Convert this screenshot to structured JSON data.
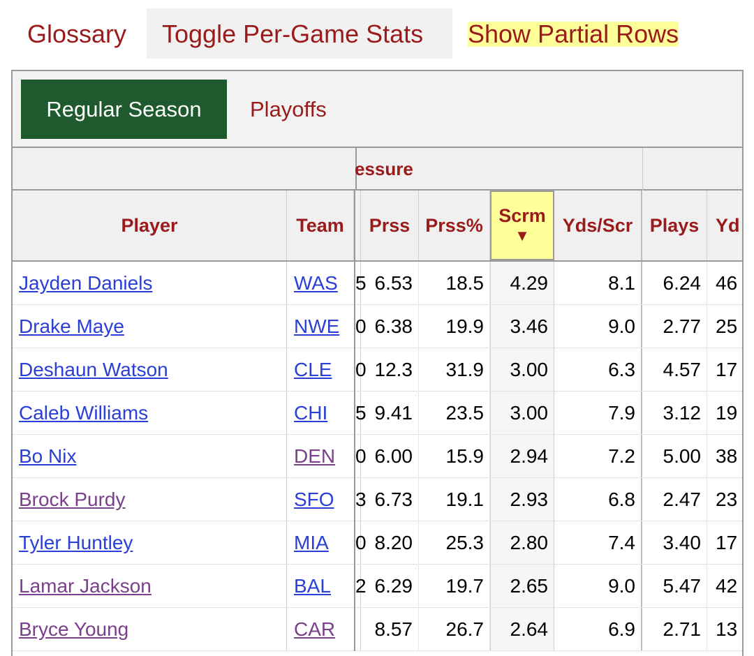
{
  "toolbar": {
    "glossary": "Glossary",
    "toggle_per_game": "Toggle Per-Game Stats",
    "show_partial_rows": "Show Partial Rows"
  },
  "tabs": {
    "regular_season": "Regular Season",
    "playoffs": "Playoffs"
  },
  "over_header": {
    "label": "essure"
  },
  "columns": {
    "player": "Player",
    "team": "Team",
    "prss": "Prss",
    "prss_pct": "Prss%",
    "scrm": "Scrm",
    "scrm_sort": "▼",
    "yds_scr": "Yds/Scr",
    "plays": "Plays",
    "yd": "Yd"
  },
  "rows": [
    {
      "player": "Jayden Daniels",
      "team": "WAS",
      "stub": "5",
      "prss": "6.53",
      "prss_pct": "18.5",
      "scrm": "4.29",
      "yds_scr": "8.1",
      "plays": "6.24",
      "yd": "46",
      "player_visited": false,
      "team_visited": false
    },
    {
      "player": "Drake Maye",
      "team": "NWE",
      "stub": "0",
      "prss": "6.38",
      "prss_pct": "19.9",
      "scrm": "3.46",
      "yds_scr": "9.0",
      "plays": "2.77",
      "yd": "25",
      "player_visited": false,
      "team_visited": false
    },
    {
      "player": "Deshaun Watson",
      "team": "CLE",
      "stub": "0",
      "prss": "12.3",
      "prss_pct": "31.9",
      "scrm": "3.00",
      "yds_scr": "6.3",
      "plays": "4.57",
      "yd": "17",
      "player_visited": false,
      "team_visited": false
    },
    {
      "player": "Caleb Williams",
      "team": "CHI",
      "stub": "5",
      "prss": "9.41",
      "prss_pct": "23.5",
      "scrm": "3.00",
      "yds_scr": "7.9",
      "plays": "3.12",
      "yd": "19",
      "player_visited": false,
      "team_visited": false
    },
    {
      "player": "Bo Nix",
      "team": "DEN",
      "stub": "0",
      "prss": "6.00",
      "prss_pct": "15.9",
      "scrm": "2.94",
      "yds_scr": "7.2",
      "plays": "5.00",
      "yd": "38",
      "player_visited": false,
      "team_visited": true
    },
    {
      "player": "Brock Purdy",
      "team": "SFO",
      "stub": "3",
      "prss": "6.73",
      "prss_pct": "19.1",
      "scrm": "2.93",
      "yds_scr": "6.8",
      "plays": "2.47",
      "yd": "23",
      "player_visited": true,
      "team_visited": false
    },
    {
      "player": "Tyler Huntley",
      "team": "MIA",
      "stub": "0",
      "prss": "8.20",
      "prss_pct": "25.3",
      "scrm": "2.80",
      "yds_scr": "7.4",
      "plays": "3.40",
      "yd": "17",
      "player_visited": false,
      "team_visited": false
    },
    {
      "player": "Lamar Jackson",
      "team": "BAL",
      "stub": "2",
      "prss": "6.29",
      "prss_pct": "19.7",
      "scrm": "2.65",
      "yds_scr": "9.0",
      "plays": "5.47",
      "yd": "42",
      "player_visited": true,
      "team_visited": false
    },
    {
      "player": "Bryce Young",
      "team": "CAR",
      "stub": "",
      "prss": "8.57",
      "prss_pct": "26.7",
      "scrm": "2.64",
      "yds_scr": "6.9",
      "plays": "2.71",
      "yd": "13",
      "player_visited": true,
      "team_visited": true
    }
  ],
  "colors": {
    "accent_red": "#991b1b",
    "tab_active_green": "#1e5a2e",
    "highlight_yellow": "#ffff99",
    "link_blue": "#2a3fd6",
    "link_visited_purple": "#7b3f8c"
  }
}
